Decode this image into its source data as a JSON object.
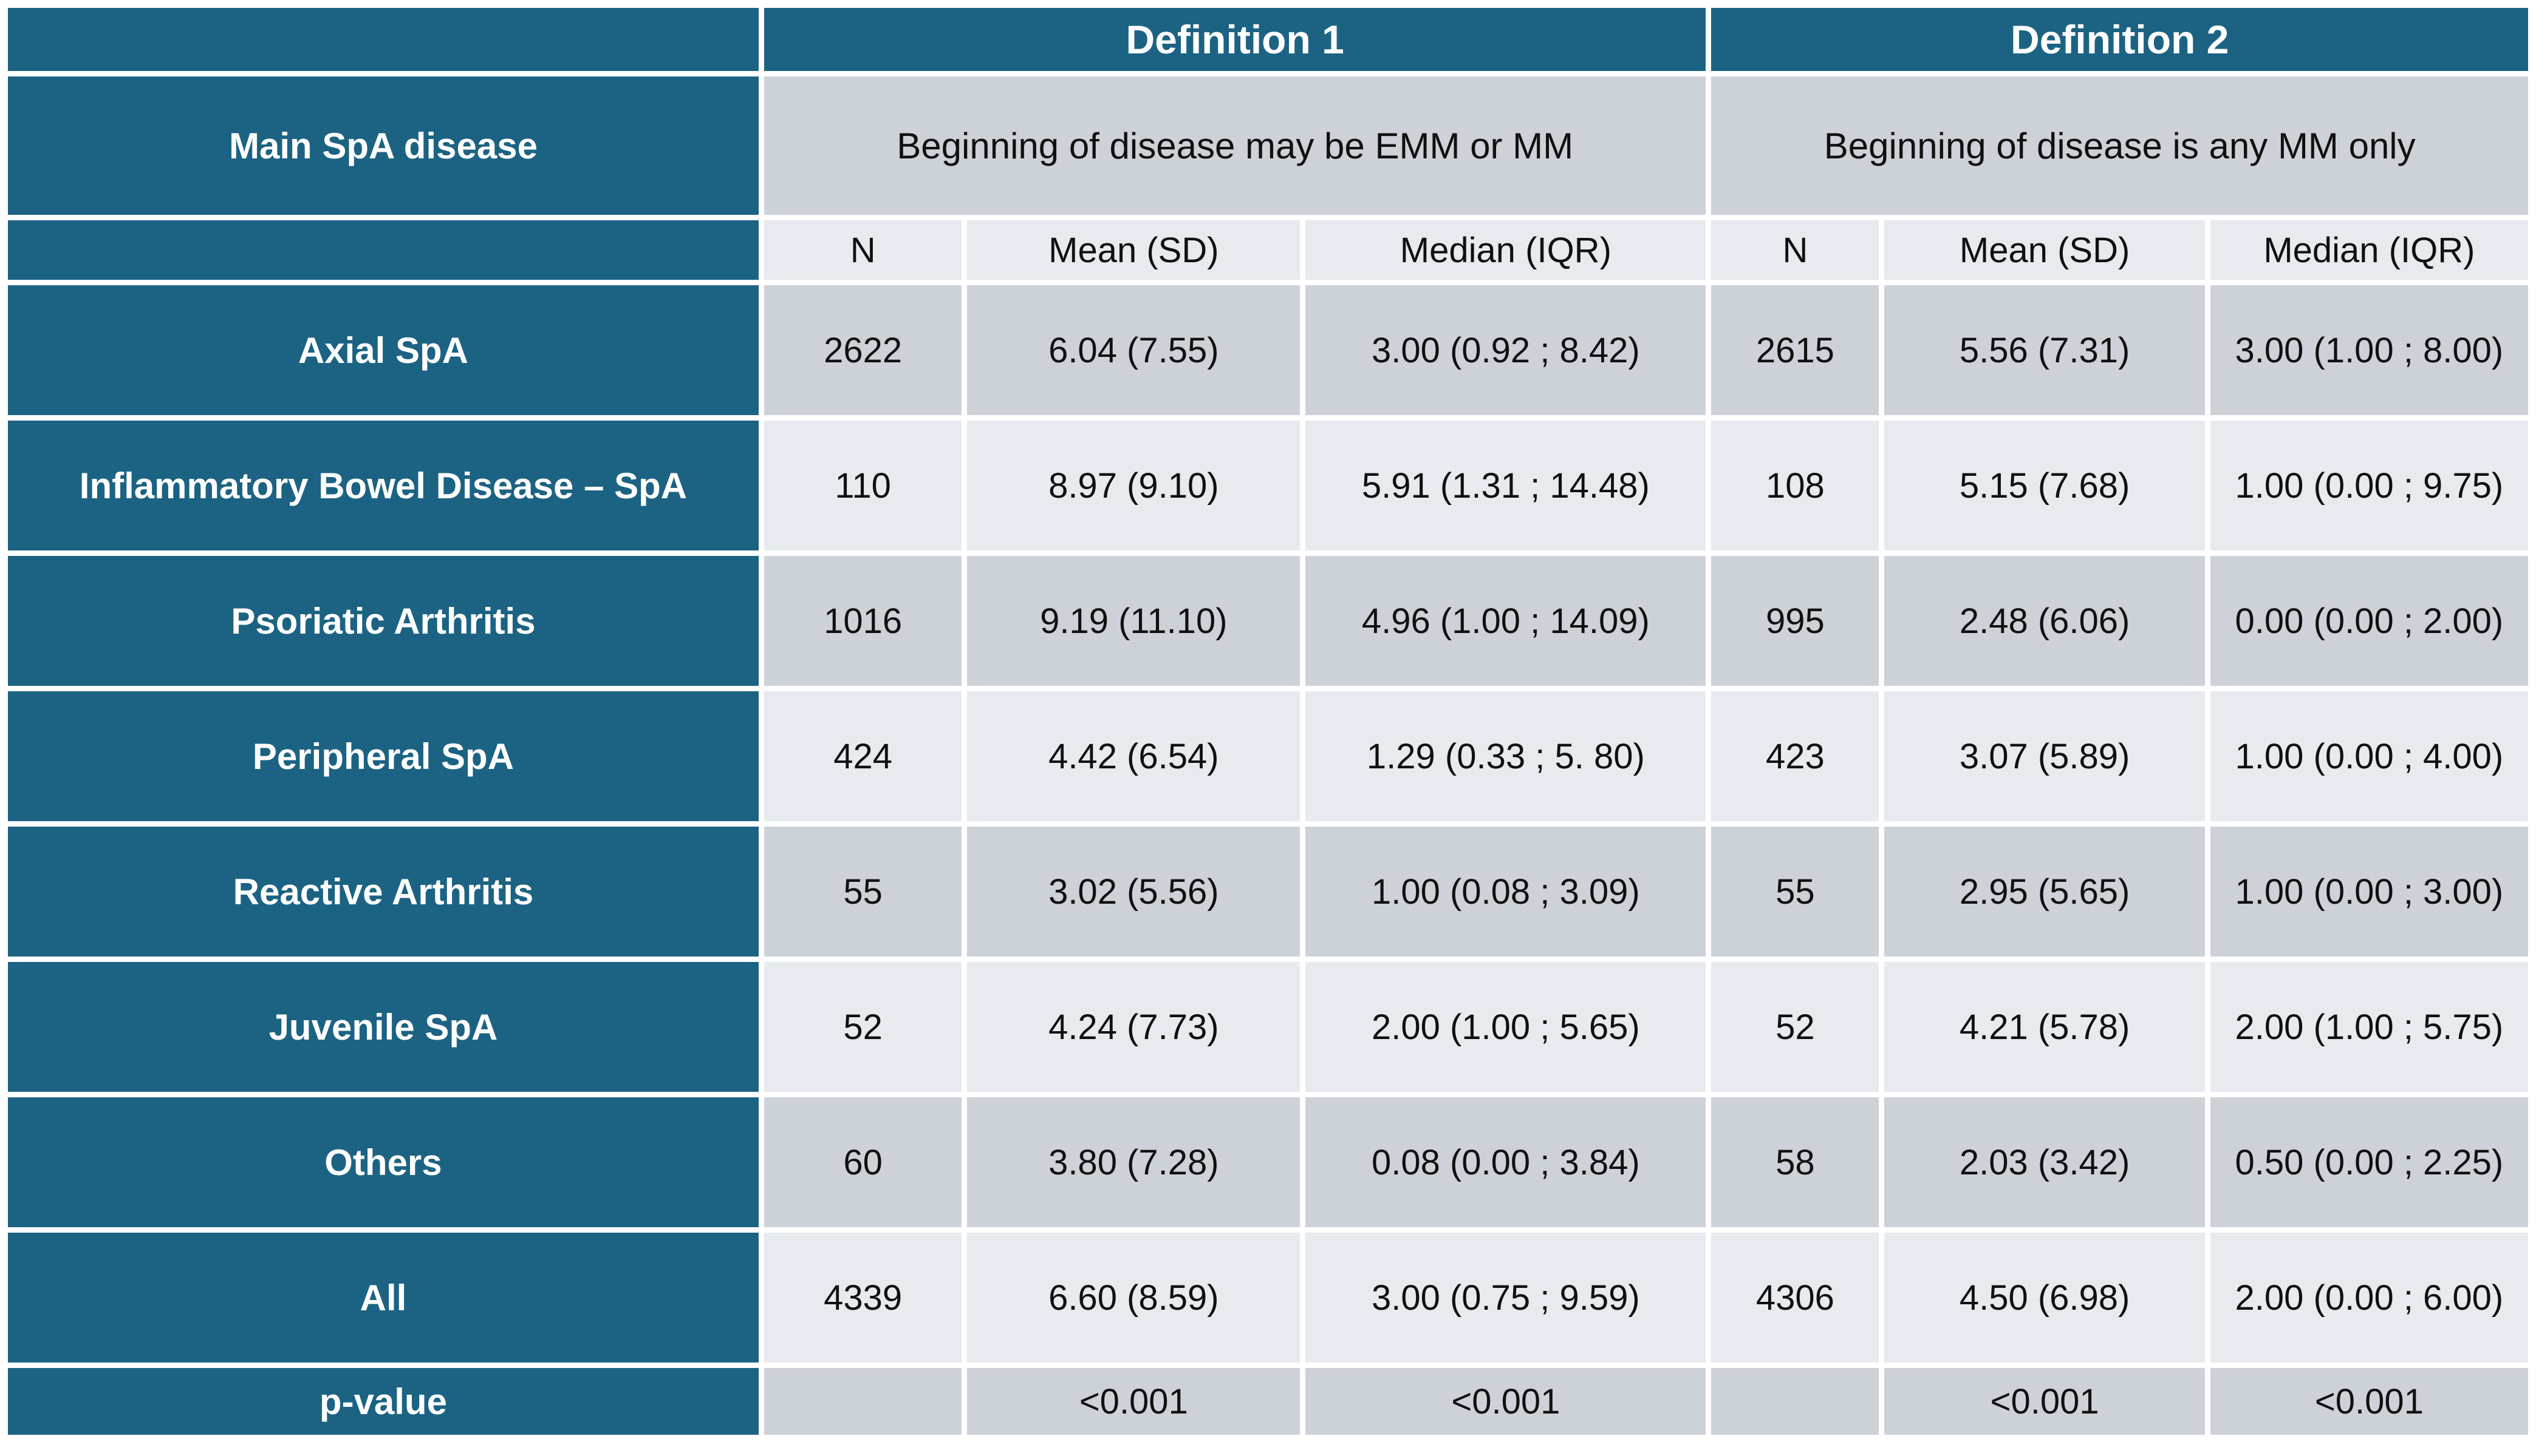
{
  "chart_data": {
    "type": "table",
    "corner_header": "",
    "row_header_title": "Main SpA disease",
    "groups": [
      {
        "title": "Definition 1",
        "subtitle": "Beginning of disease may be EMM or MM"
      },
      {
        "title": "Definition 2",
        "subtitle": "Beginning of disease is any MM only"
      }
    ],
    "stat_headers": [
      "N",
      "Mean (SD)",
      "Median (IQR)",
      "N",
      "Mean (SD)",
      "Median (IQR)"
    ],
    "rows": [
      {
        "label": "Axial SpA",
        "cells": [
          "2622",
          "6.04 (7.55)",
          "3.00 (0.92 ; 8.42)",
          "2615",
          "5.56 (7.31)",
          "3.00 (1.00 ; 8.00)"
        ]
      },
      {
        "label": "Inflammatory Bowel Disease – SpA",
        "cells": [
          "110",
          "8.97 (9.10)",
          "5.91 (1.31 ; 14.48)",
          "108",
          "5.15 (7.68)",
          "1.00 (0.00 ; 9.75)"
        ]
      },
      {
        "label": "Psoriatic Arthritis",
        "cells": [
          "1016",
          "9.19 (11.10)",
          "4.96 (1.00 ; 14.09)",
          "995",
          "2.48 (6.06)",
          "0.00 (0.00 ; 2.00)"
        ]
      },
      {
        "label": "Peripheral SpA",
        "cells": [
          "424",
          "4.42 (6.54)",
          "1.29 (0.33 ; 5. 80)",
          "423",
          "3.07 (5.89)",
          "1.00 (0.00 ; 4.00)"
        ]
      },
      {
        "label": "Reactive Arthritis",
        "cells": [
          "55",
          "3.02 (5.56)",
          "1.00 (0.08 ; 3.09)",
          "55",
          "2.95 (5.65)",
          "1.00 (0.00 ; 3.00)"
        ]
      },
      {
        "label": "Juvenile SpA",
        "cells": [
          "52",
          "4.24 (7.73)",
          "2.00 (1.00 ; 5.65)",
          "52",
          "4.21 (5.78)",
          "2.00 (1.00 ; 5.75)"
        ]
      },
      {
        "label": "Others",
        "cells": [
          "60",
          "3.80 (7.28)",
          "0.08 (0.00 ; 3.84)",
          "58",
          "2.03 (3.42)",
          "0.50 (0.00 ; 2.25)"
        ]
      },
      {
        "label": "All",
        "cells": [
          "4339",
          "6.60 (8.59)",
          "3.00 (0.75 ; 9.59)",
          "4306",
          "4.50 (6.98)",
          "2.00 (0.00 ; 6.00)"
        ]
      }
    ],
    "pvalue_row": {
      "label": "p-value",
      "cells": [
        "",
        "<0.001",
        "<0.001",
        "",
        "<0.001",
        "<0.001"
      ]
    }
  },
  "colors": {
    "header_teal": "#1C6383",
    "row_dark": "#CDD1D8",
    "row_light": "#E7EAEE",
    "text_dark": "#101010",
    "text_light": "#FFFFFF",
    "background": "#FFFFFF"
  }
}
